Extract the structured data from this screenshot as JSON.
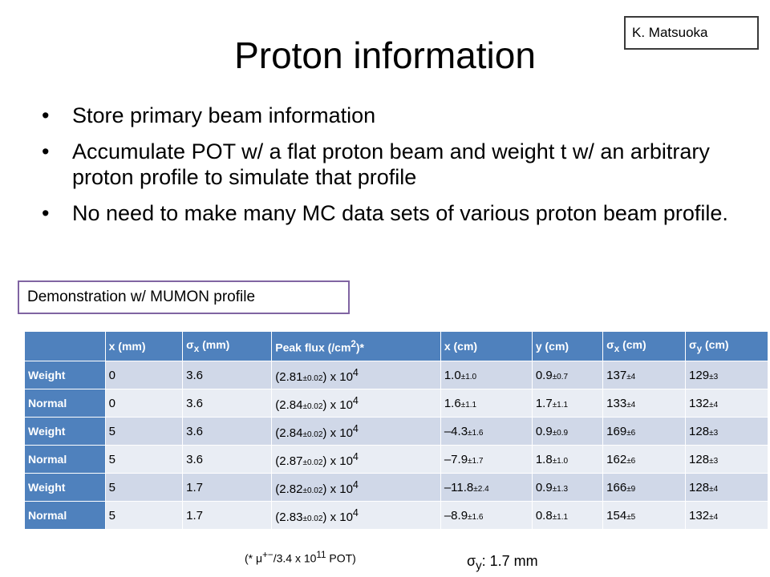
{
  "author": "K. Matsuoka",
  "title": "Proton information",
  "bullets": [
    "Store primary beam information",
    "Accumulate POT w/ a flat proton beam and weight t w/ an arbitrary proton profile to simulate that profile",
    "No need to make many MC data sets of various proton beam profile."
  ],
  "demo_label": "Demonstration w/ MUMON profile",
  "table": {
    "header": [
      "",
      "x (mm)",
      [
        "σ",
        {
          "sub": "x"
        },
        " (mm)"
      ],
      [
        "Peak flux (/cm",
        {
          "sup": "2"
        },
        ")*"
      ],
      "x (cm)",
      "y (cm)",
      [
        "σ",
        {
          "sub": "x"
        },
        " (cm)"
      ],
      [
        "σ",
        {
          "sub": "y"
        },
        " (cm)"
      ]
    ],
    "rows": [
      [
        "Weight",
        "0",
        "3.6",
        [
          "(2.81",
          {
            "small": "±0.02"
          },
          ") x 10",
          {
            "sup": "4"
          }
        ],
        [
          "1.0",
          {
            "small": "±1.0"
          }
        ],
        [
          "0.9",
          {
            "small": "±0.7"
          }
        ],
        [
          "137",
          {
            "small": "±4"
          }
        ],
        [
          "129",
          {
            "small": "±3"
          }
        ]
      ],
      [
        "Normal",
        "0",
        "3.6",
        [
          "(2.84",
          {
            "small": "±0.02"
          },
          ") x 10",
          {
            "sup": "4"
          }
        ],
        [
          "1.6",
          {
            "small": "±1.1"
          }
        ],
        [
          "1.7",
          {
            "small": "±1.1"
          }
        ],
        [
          "133",
          {
            "small": "±4"
          }
        ],
        [
          "132",
          {
            "small": "±4"
          }
        ]
      ],
      [
        "Weight",
        "5",
        "3.6",
        [
          "(2.84",
          {
            "small": "±0.02"
          },
          ") x 10",
          {
            "sup": "4"
          }
        ],
        [
          "–4.3",
          {
            "small": "±1.6"
          }
        ],
        [
          "0.9",
          {
            "small": "±0.9"
          }
        ],
        [
          "169",
          {
            "small": "±6"
          }
        ],
        [
          "128",
          {
            "small": "±3"
          }
        ]
      ],
      [
        "Normal",
        "5",
        "3.6",
        [
          "(2.87",
          {
            "small": "±0.02"
          },
          ") x 10",
          {
            "sup": "4"
          }
        ],
        [
          "–7.9",
          {
            "small": "±1.7"
          }
        ],
        [
          "1.8",
          {
            "small": "±1.0"
          }
        ],
        [
          "162",
          {
            "small": "±6"
          }
        ],
        [
          "128",
          {
            "small": "±3"
          }
        ]
      ],
      [
        "Weight",
        "5",
        "1.7",
        [
          "(2.82",
          {
            "small": "±0.02"
          },
          ") x 10",
          {
            "sup": "4"
          }
        ],
        [
          "–11.8",
          {
            "small": "±2.4"
          }
        ],
        [
          "0.9",
          {
            "small": "±1.3"
          }
        ],
        [
          "166",
          {
            "small": "±9"
          }
        ],
        [
          "128",
          {
            "small": "±4"
          }
        ]
      ],
      [
        "Normal",
        "5",
        "1.7",
        [
          "(2.83",
          {
            "small": "±0.02"
          },
          ") x 10",
          {
            "sup": "4"
          }
        ],
        [
          "–8.9",
          {
            "small": "±1.6"
          }
        ],
        [
          "0.8",
          {
            "small": "±1.1"
          }
        ],
        [
          "154",
          {
            "small": "±5"
          }
        ],
        [
          "132",
          {
            "small": "±4"
          }
        ]
      ]
    ]
  },
  "footnote": [
    "(* μ",
    {
      "sup": "+−"
    },
    "/3.4 x 10",
    {
      "sup": "11"
    },
    " POT)"
  ],
  "sigma_y": [
    "σ",
    {
      "sub": "y"
    },
    ": 1.7 mm"
  ]
}
